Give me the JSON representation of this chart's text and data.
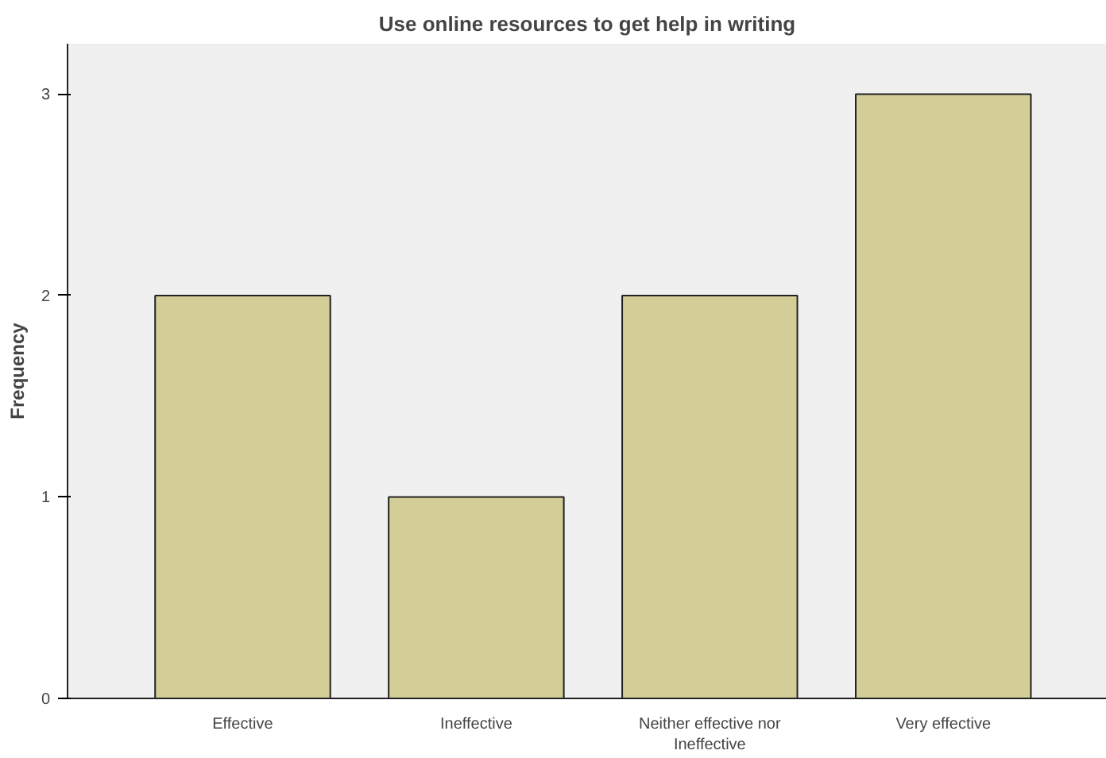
{
  "chart_data": {
    "type": "bar",
    "title": "Use online resources to get help in writing",
    "ylabel": "Frequency",
    "categories": [
      "Effective",
      "Ineffective",
      "Neither effective nor Ineffective",
      "Very effective"
    ],
    "values": [
      2,
      1,
      2,
      3
    ],
    "color": "#d3ce97",
    "ylim": [
      0,
      3.25
    ],
    "yticks": [
      0,
      1,
      2,
      3
    ],
    "grid": false
  }
}
